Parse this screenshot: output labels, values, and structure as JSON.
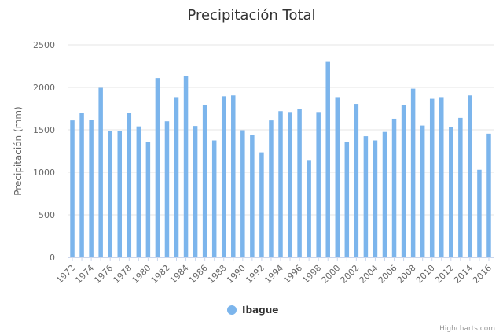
{
  "chart_data": {
    "type": "bar",
    "title": "Precipitación Total",
    "ylabel": "Precipitación (mm)",
    "xlabel": "",
    "ylim": [
      0,
      2500
    ],
    "yticks": [
      0,
      500,
      1000,
      1500,
      2000,
      2500
    ],
    "grid": true,
    "legend_position": "bottom-center",
    "categories": [
      "1972",
      "1973",
      "1974",
      "1975",
      "1976",
      "1977",
      "1978",
      "1979",
      "1980",
      "1981",
      "1982",
      "1983",
      "1984",
      "1985",
      "1986",
      "1987",
      "1988",
      "1989",
      "1990",
      "1991",
      "1992",
      "1993",
      "1994",
      "1995",
      "1996",
      "1997",
      "1998",
      "1999",
      "2000",
      "2001",
      "2002",
      "2003",
      "2004",
      "2005",
      "2006",
      "2007",
      "2008",
      "2009",
      "2010",
      "2011",
      "2012",
      "2013",
      "2014",
      "2015",
      "2016"
    ],
    "x_tick_labels": [
      "1972",
      "1974",
      "1976",
      "1978",
      "1980",
      "1982",
      "1984",
      "1986",
      "1988",
      "1990",
      "1992",
      "1994",
      "1996",
      "1998",
      "2000",
      "2002",
      "2004",
      "2006",
      "2008",
      "2010",
      "2012",
      "2014",
      "2016"
    ],
    "series": [
      {
        "name": "Ibague",
        "color": "#7cb5ec",
        "values": [
          1610,
          1700,
          1620,
          1995,
          1490,
          1490,
          1700,
          1540,
          1355,
          2110,
          1600,
          1885,
          2130,
          1545,
          1790,
          1375,
          1895,
          1905,
          1495,
          1440,
          1235,
          1610,
          1720,
          1710,
          1750,
          1145,
          1710,
          2300,
          1885,
          1355,
          1805,
          1425,
          1375,
          1475,
          1630,
          1795,
          1985,
          1550,
          1865,
          1885,
          1530,
          1640,
          1905,
          1030,
          1455
        ]
      }
    ]
  },
  "credits": "Highcharts.com"
}
